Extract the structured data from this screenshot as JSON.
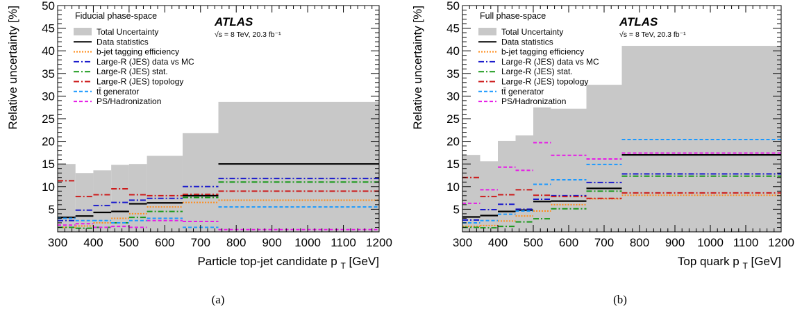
{
  "chart_data": [
    {
      "type": "step",
      "panel_label": "(a)",
      "phase_space": "Fiducial phase-space",
      "experiment": "ATLAS",
      "energy_label": "√s = 8 TeV, 20.3 fb⁻¹",
      "xlabel": "Particle top-jet candidate p",
      "xlabel_sub": "T",
      "xlabel_unit": "[GeV]",
      "ylabel": "Relative uncertainty [%]",
      "xlim": [
        300,
        1200
      ],
      "ylim": [
        0,
        50
      ],
      "x_ticks": [
        300,
        400,
        500,
        600,
        700,
        800,
        900,
        1000,
        1100,
        1200
      ],
      "y_ticks": [
        5,
        10,
        15,
        20,
        25,
        30,
        35,
        40,
        45,
        50
      ],
      "bin_edges": [
        300,
        350,
        400,
        450,
        500,
        550,
        650,
        750,
        1200
      ],
      "total": [
        15,
        13,
        13.6,
        14.8,
        15,
        16.8,
        21.8,
        28.7
      ],
      "series": [
        {
          "name": "Data statistics",
          "color": "#000000",
          "style": "solid",
          "values": [
            3.2,
            3.5,
            4.3,
            4.5,
            6.2,
            6.4,
            8.0,
            15.0
          ]
        },
        {
          "name": "b-jet tagging efficiency",
          "color": "#ff8c1a",
          "style": "dotted",
          "values": [
            1.0,
            1.3,
            2.0,
            3.0,
            4.0,
            5.5,
            6.5,
            7.0
          ]
        },
        {
          "name": "Large-R (JES) data vs MC",
          "color": "#1a1acc",
          "style": "dashdot",
          "values": [
            2.5,
            4.8,
            5.8,
            6.5,
            7.0,
            7.4,
            10.0,
            11.8
          ]
        },
        {
          "name": "Large-R (JES) stat.",
          "color": "#1a991a",
          "style": "dashdot",
          "values": [
            1.0,
            0.8,
            1.0,
            2.0,
            3.2,
            4.5,
            7.6,
            11.0
          ]
        },
        {
          "name": "Large-R (JES) topology",
          "color": "#cc1a1a",
          "style": "dashdot",
          "values": [
            11.3,
            7.8,
            8.2,
            9.5,
            8.2,
            8.0,
            8.3,
            9.0
          ]
        },
        {
          "name": "tt̄ generator",
          "color": "#1a99ff",
          "style": "dashed",
          "values": [
            3.0,
            2.5,
            2.5,
            2.0,
            2.5,
            3.0,
            1.0,
            5.5
          ]
        },
        {
          "name": "PS/Hadronization",
          "color": "#e61ae6",
          "style": "dashed",
          "values": [
            1.5,
            1.8,
            1.0,
            1.2,
            1.0,
            2.5,
            2.3,
            0.5
          ]
        }
      ]
    },
    {
      "type": "step",
      "panel_label": "(b)",
      "phase_space": "Full phase-space",
      "experiment": "ATLAS",
      "energy_label": "√s = 8 TeV, 20.3 fb⁻¹",
      "xlabel": "Top quark p",
      "xlabel_sub": "T",
      "xlabel_unit": "[GeV]",
      "ylabel": "Relative uncertainty [%]",
      "xlim": [
        300,
        1200
      ],
      "ylim": [
        0,
        50
      ],
      "x_ticks": [
        300,
        400,
        500,
        600,
        700,
        800,
        900,
        1000,
        1100,
        1200
      ],
      "y_ticks": [
        5,
        10,
        15,
        20,
        25,
        30,
        35,
        40,
        45,
        50
      ],
      "bin_edges": [
        300,
        350,
        400,
        450,
        500,
        550,
        650,
        750,
        1200
      ],
      "total": [
        17,
        15.6,
        20.1,
        21.3,
        27.5,
        27.2,
        32.5,
        41.1
      ],
      "series": [
        {
          "name": "Data statistics",
          "color": "#000000",
          "style": "solid",
          "values": [
            3.3,
            3.6,
            4.5,
            4.8,
            6.7,
            6.8,
            9.6,
            17.0
          ]
        },
        {
          "name": "b-jet tagging efficiency",
          "color": "#ff8c1a",
          "style": "dotted",
          "values": [
            1.2,
            1.4,
            2.4,
            3.5,
            4.6,
            6.0,
            7.3,
            8.1
          ]
        },
        {
          "name": "Large-R (JES) data vs MC",
          "color": "#1a1acc",
          "style": "dashdot",
          "values": [
            2.6,
            4.9,
            6.1,
            5.0,
            7.2,
            8.0,
            10.9,
            12.8
          ]
        },
        {
          "name": "Large-R (JES) stat.",
          "color": "#1a991a",
          "style": "dashdot",
          "values": [
            1.0,
            0.9,
            1.2,
            2.2,
            2.9,
            5.1,
            9.0,
            12.3
          ]
        },
        {
          "name": "Large-R (JES) topology",
          "color": "#cc1a1a",
          "style": "dashdot",
          "values": [
            12.0,
            7.8,
            8.2,
            9.3,
            8.1,
            7.8,
            7.4,
            8.6
          ]
        },
        {
          "name": "tt̄ generator",
          "color": "#1a99ff",
          "style": "dashed",
          "values": [
            2.0,
            2.5,
            3.9,
            4.6,
            10.5,
            11.5,
            14.9,
            20.4
          ]
        },
        {
          "name": "PS/Hadronization",
          "color": "#e61ae6",
          "style": "dashed",
          "values": [
            6.3,
            9.3,
            14.3,
            13.6,
            19.7,
            16.9,
            16.1,
            17.4
          ]
        }
      ]
    }
  ],
  "legend_total_label": "Total Uncertainty"
}
